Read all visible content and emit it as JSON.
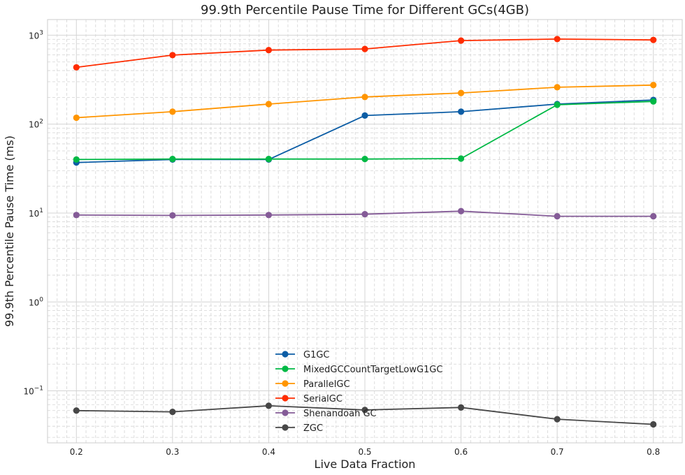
{
  "chart_data": {
    "type": "line",
    "title": "99.9th Percentile Pause Time for Different GCs(4GB)",
    "xlabel": "Live Data Fraction",
    "ylabel": "99.9th Percentile Pause Time (ms)",
    "x": [
      0.2,
      0.3,
      0.4,
      0.5,
      0.6,
      0.7,
      0.8
    ],
    "x_tick_labels": [
      "0.2",
      "0.3",
      "0.4",
      "0.5",
      "0.6",
      "0.7",
      "0.8"
    ],
    "xlim": [
      0.17,
      0.83
    ],
    "y_scale": "log",
    "ylim": [
      0.026,
      1500
    ],
    "y_ticks": [
      {
        "value": 0.1,
        "base": "10",
        "exp": "−1"
      },
      {
        "value": 1,
        "base": "10",
        "exp": "0"
      },
      {
        "value": 10,
        "base": "10",
        "exp": "1"
      },
      {
        "value": 100,
        "base": "10",
        "exp": "2"
      },
      {
        "value": 1000,
        "base": "10",
        "exp": "3"
      }
    ],
    "grid": true,
    "legend_position": "bottom-center",
    "series": [
      {
        "name": "G1GC",
        "color": "#0c5da5",
        "values": [
          37,
          40,
          40,
          125,
          138,
          168,
          187
        ]
      },
      {
        "name": "MixedGCCountTargetLowG1GC",
        "color": "#00b945",
        "values": [
          40,
          40.5,
          40.5,
          40.5,
          41,
          165,
          180
        ]
      },
      {
        "name": "ParallelGC",
        "color": "#ff9500",
        "values": [
          118,
          138,
          168,
          202,
          224,
          260,
          275
        ]
      },
      {
        "name": "SerialGC",
        "color": "#ff2c00",
        "values": [
          435,
          597,
          680,
          700,
          870,
          905,
          885
        ]
      },
      {
        "name": "Shenandoah GC",
        "color": "#845b97",
        "values": [
          9.5,
          9.4,
          9.5,
          9.7,
          10.5,
          9.2,
          9.2
        ]
      },
      {
        "name": "ZGC",
        "color": "#474747",
        "values": [
          0.06,
          0.058,
          0.068,
          0.061,
          0.065,
          0.048,
          0.042
        ]
      }
    ]
  }
}
